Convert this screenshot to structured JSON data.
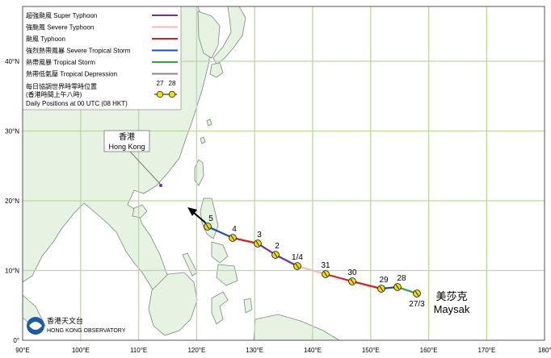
{
  "colors": {
    "sea": "#ffffff",
    "land": "#e6f2e2",
    "coast": "#7a8a7a",
    "grid": "#bcd89a",
    "super_typhoon": "#7030a0",
    "severe_typhoon": "#f4b8b8",
    "typhoon": "#d42020",
    "severe_tropical_storm": "#1f4fb0",
    "tropical_storm": "#2aa545",
    "tropical_depression": "#888888",
    "marker": "#f0e000"
  },
  "legend": {
    "items": [
      {
        "key": "super_typhoon",
        "text": "超強颱風  Super Typhoon"
      },
      {
        "key": "severe_typhoon",
        "text": "強颱風  Severe Typhoon"
      },
      {
        "key": "typhoon",
        "text": "颱風  Typhoon"
      },
      {
        "key": "severe_tropical_storm",
        "text": "強烈熱帶風暴  Severe Tropical Storm"
      },
      {
        "key": "tropical_storm",
        "text": "熱帶風暴  Tropical Storm"
      },
      {
        "key": "tropical_depression",
        "text": "熱帶低氣壓  Tropical Depression"
      }
    ],
    "daily_line1": "每日協調世界時零時位置",
    "daily_line2": "(香港時間上午八時)",
    "daily_line3": "Daily Positions at 00 UTC (08 HKT)",
    "sample_day1": "27",
    "sample_day2": "28"
  },
  "axes": {
    "x_ticks": [
      "90°E",
      "100°E",
      "110°E",
      "120°E",
      "130°E",
      "140°E",
      "150°E",
      "160°E",
      "170°E",
      "180°"
    ],
    "y_ticks": [
      "0°",
      "10°N",
      "20°N",
      "30°N",
      "40°N"
    ]
  },
  "hong_kong": {
    "zh": "香港",
    "en": "Hong Kong"
  },
  "storm": {
    "zh": "美莎克",
    "en": "Maysak"
  },
  "observatory": {
    "zh": "香港天文台",
    "en": "HONG KONG OBSERVATORY"
  },
  "track": {
    "daily_labels": [
      "27/3",
      "28",
      "29",
      "30",
      "31",
      "1/4",
      "2",
      "3",
      "4",
      "5"
    ],
    "segments": [
      "tropical_storm",
      "severe_tropical_storm",
      "typhoon",
      "severe_typhoon",
      "super_typhoon",
      "typhoon",
      "severe_tropical_storm",
      "tropical_storm"
    ]
  }
}
